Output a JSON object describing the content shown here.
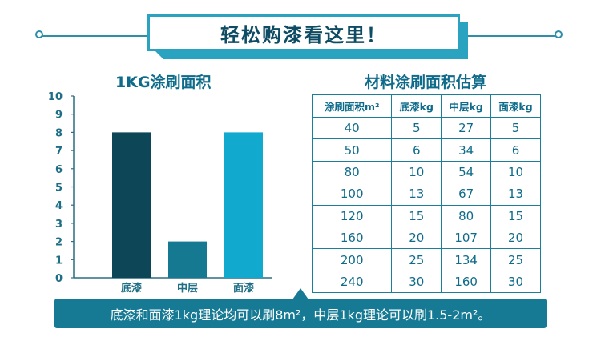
{
  "header": {
    "title": "轻松购漆看这里！"
  },
  "colors": {
    "primary": "#177a94",
    "accent": "#2aa3c1",
    "base_coat": "#0c4657",
    "middle_coat": "#157a91",
    "top_coat": "#12a9cf"
  },
  "chart_data": {
    "type": "bar",
    "title": "1KG涂刷面积",
    "categories": [
      "底漆",
      "中层",
      "面漆"
    ],
    "values": [
      8,
      2,
      8
    ],
    "ylim": [
      0,
      10
    ],
    "yticks": [
      0,
      1,
      2,
      3,
      4,
      5,
      6,
      7,
      8,
      9,
      10
    ],
    "xlabel": "",
    "ylabel": "",
    "grid": false,
    "colors": [
      "#0c4657",
      "#157a91",
      "#12a9cf"
    ]
  },
  "table": {
    "title": "材料涂刷面积估算",
    "headers": [
      "涂刷面积m²",
      "底漆kg",
      "中层kg",
      "面漆kg"
    ],
    "rows": [
      [
        "40",
        "5",
        "27",
        "5"
      ],
      [
        "50",
        "6",
        "34",
        "6"
      ],
      [
        "80",
        "10",
        "54",
        "10"
      ],
      [
        "100",
        "13",
        "67",
        "13"
      ],
      [
        "120",
        "15",
        "80",
        "15"
      ],
      [
        "160",
        "20",
        "107",
        "20"
      ],
      [
        "200",
        "25",
        "134",
        "25"
      ],
      [
        "240",
        "30",
        "160",
        "30"
      ]
    ]
  },
  "footer": {
    "note": "底漆和面漆1kg理论均可以刷8m²，中层1kg理论可以刷1.5-2m²。"
  }
}
